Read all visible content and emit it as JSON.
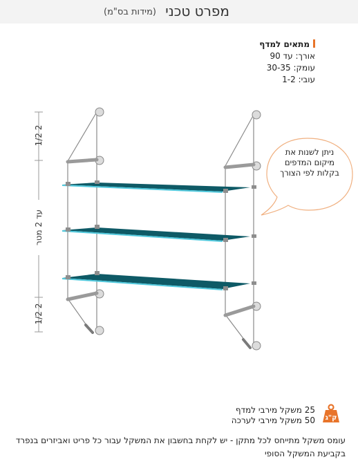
{
  "header": {
    "title": "מפרט טכני",
    "subtitle": "(מידות בס\"מ)"
  },
  "specs": {
    "heading": "מתאים למדף",
    "length_label": "אורך:",
    "length_value": "עד 90",
    "depth_label": "עומק:",
    "depth_value": "30-35",
    "thickness_label": "עובי:",
    "thickness_value": "1-2"
  },
  "diagram": {
    "bubble_text": "ניתן לשנות את מיקום המדפים בקלות לפי הצורך",
    "dim_top": "2 1/2",
    "dim_middle": "עד 2 מטר",
    "dim_bottom": "2 1/2",
    "shelf_count": 3,
    "colors": {
      "glass": "#0e5a66",
      "glass_edge": "#4fc8dc",
      "cable": "#8a8a8a",
      "bracket": "#8e8e8e"
    }
  },
  "weights": {
    "per_shelf": "25 משקל מירבי למדף",
    "per_kit": "50 משקל מירבי לערכה",
    "icon": "kg-weight-icon",
    "icon_text": "ק\"ג",
    "icon_color": "#e8742a"
  },
  "note": "עומס משקל מתייחס לכל מתקן - יש לקחת בחשבון את המשקל עבור כל פריט ואביזרים בנפרד בקביעת המשקל הסופי"
}
